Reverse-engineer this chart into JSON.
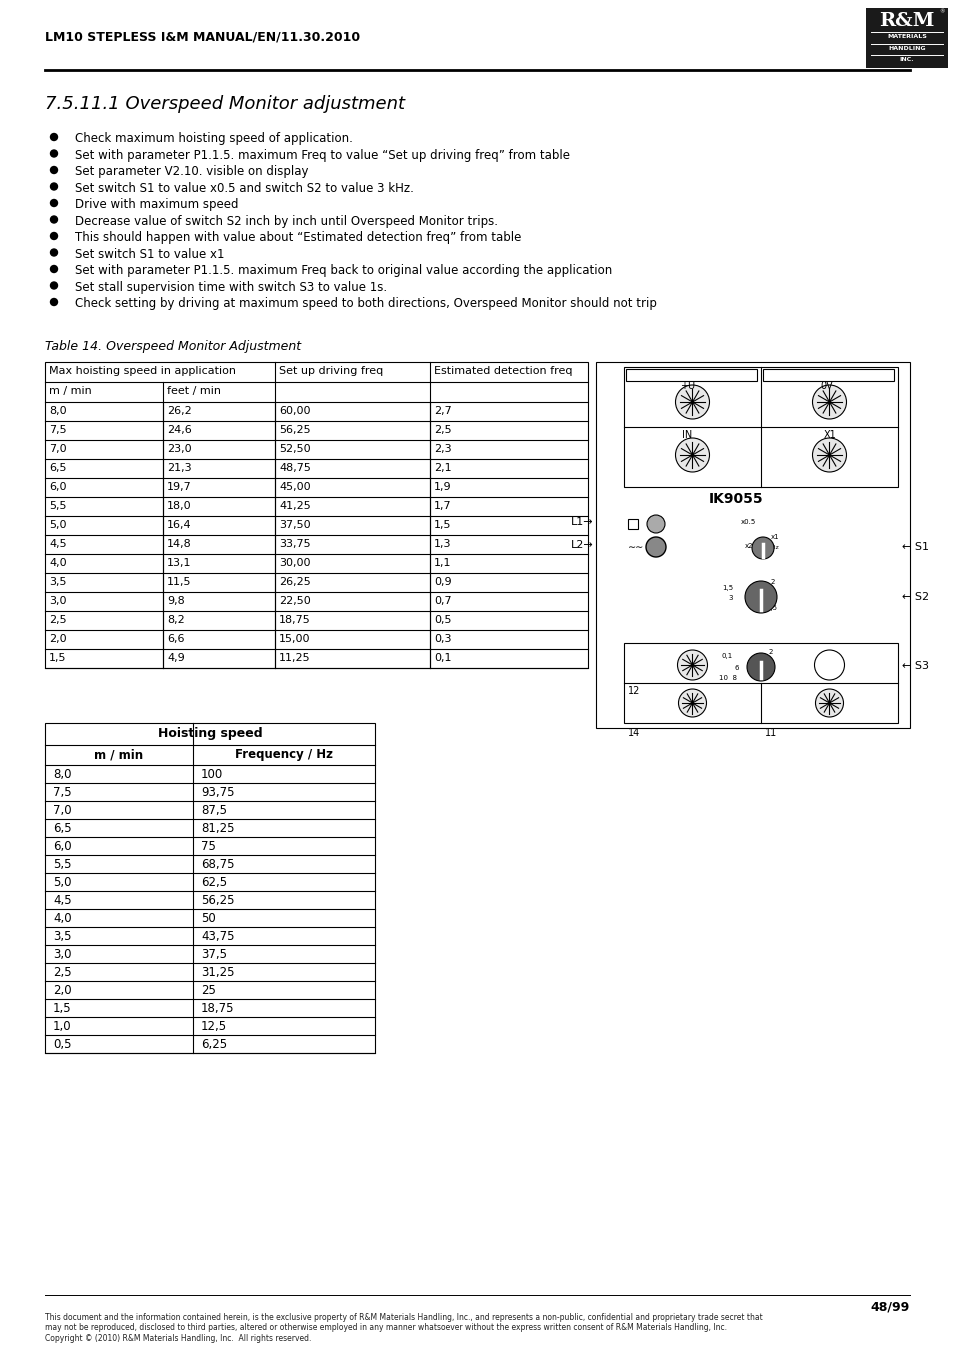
{
  "header_text": "LM10 STEPLESS I&M MANUAL/EN/11.30.2010",
  "section_title": "7.5.11.1 Overspeed Monitor adjustment",
  "bullet_points": [
    "Check maximum hoisting speed of application.",
    "Set with parameter P1.1.5. maximum Freq to value “Set up driving freq” from table",
    "Set parameter V2.10. visible on display",
    "Set switch S1 to value x0.5 and switch S2 to value 3 kHz.",
    "Drive with maximum speed",
    "Decrease value of switch S2 inch by inch until Overspeed Monitor trips.",
    "This should happen with value about “Estimated detection freq” from table",
    "Set switch S1 to value x1",
    "Set with parameter P1.1.5. maximum Freq back to original value according the application",
    "Set stall supervision time with switch S3 to value 1s.",
    "Check setting by driving at maximum speed to both directions, Overspeed Monitor should not trip"
  ],
  "table14_title": "Table 14. Overspeed Monitor Adjustment",
  "table14_col1_header1": "Max hoisting speed in application",
  "table14_col1_header2": "m / min",
  "table14_col2_header2": "feet / min",
  "table14_col3_header": "Set up driving freq",
  "table14_col4_header": "Estimated detection freq",
  "table14_data": [
    [
      "8,0",
      "26,2",
      "60,00",
      "2,7"
    ],
    [
      "7,5",
      "24,6",
      "56,25",
      "2,5"
    ],
    [
      "7,0",
      "23,0",
      "52,50",
      "2,3"
    ],
    [
      "6,5",
      "21,3",
      "48,75",
      "2,1"
    ],
    [
      "6,0",
      "19,7",
      "45,00",
      "1,9"
    ],
    [
      "5,5",
      "18,0",
      "41,25",
      "1,7"
    ],
    [
      "5,0",
      "16,4",
      "37,50",
      "1,5"
    ],
    [
      "4,5",
      "14,8",
      "33,75",
      "1,3"
    ],
    [
      "4,0",
      "13,1",
      "30,00",
      "1,1"
    ],
    [
      "3,5",
      "11,5",
      "26,25",
      "0,9"
    ],
    [
      "3,0",
      "9,8",
      "22,50",
      "0,7"
    ],
    [
      "2,5",
      "8,2",
      "18,75",
      "0,5"
    ],
    [
      "2,0",
      "6,6",
      "15,00",
      "0,3"
    ],
    [
      "1,5",
      "4,9",
      "11,25",
      "0,1"
    ]
  ],
  "table2_title": "Hoisting speed",
  "table2_col1": "m / min",
  "table2_col2": "Frequency / Hz",
  "table2_data": [
    [
      "8,0",
      "100"
    ],
    [
      "7,5",
      "93,75"
    ],
    [
      "7,0",
      "87,5"
    ],
    [
      "6,5",
      "81,25"
    ],
    [
      "6,0",
      "75"
    ],
    [
      "5,5",
      "68,75"
    ],
    [
      "5,0",
      "62,5"
    ],
    [
      "4,5",
      "56,25"
    ],
    [
      "4,0",
      "50"
    ],
    [
      "3,5",
      "43,75"
    ],
    [
      "3,0",
      "37,5"
    ],
    [
      "2,5",
      "31,25"
    ],
    [
      "2,0",
      "25"
    ],
    [
      "1,5",
      "18,75"
    ],
    [
      "1,0",
      "12,5"
    ],
    [
      "0,5",
      "6,25"
    ]
  ],
  "footer_page": "48/99",
  "footer_text": "This document and the information contained herein, is the exclusive property of R&M Materials Handling, Inc., and represents a non-public, confidential and proprietary trade secret that\nmay not be reproduced, disclosed to third parties, altered or otherwise employed in any manner whatsoever without the express written consent of R&M Materials Handling, Inc.\nCopyright © (2010) R&M Materials Handling, Inc.  All rights reserved.",
  "bg_color": "#ffffff",
  "logo_bg": "#1a1a1a"
}
